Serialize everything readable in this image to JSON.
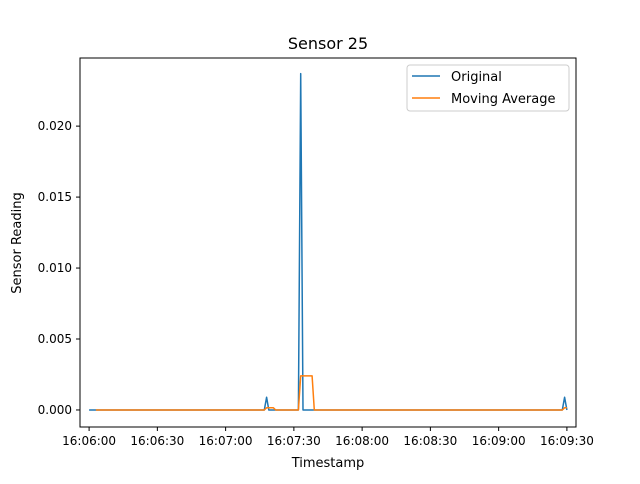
{
  "chart_data": {
    "type": "line",
    "title": "Sensor 25",
    "xlabel": "Timestamp",
    "ylabel": "Sensor Reading",
    "xlim": [
      "16:05:56",
      "16:09:34"
    ],
    "ylim": [
      -0.0012,
      0.0248
    ],
    "x_ticks": [
      "16:06:00",
      "16:06:30",
      "16:07:00",
      "16:07:30",
      "16:08:00",
      "16:08:30",
      "16:09:00",
      "16:09:30"
    ],
    "y_ticks": [
      {
        "value": 0.0,
        "label": "0.000"
      },
      {
        "value": 0.005,
        "label": "0.005"
      },
      {
        "value": 0.01,
        "label": "0.010"
      },
      {
        "value": 0.015,
        "label": "0.015"
      },
      {
        "value": 0.02,
        "label": "0.020"
      }
    ],
    "legend": {
      "position": "top-right"
    },
    "grid": false,
    "series": [
      {
        "name": "Original",
        "color": "#1f77b4",
        "points": [
          [
            "16:06:00",
            0.0
          ],
          [
            "16:07:17",
            0.0
          ],
          [
            "16:07:18",
            0.0009
          ],
          [
            "16:07:19",
            0.0
          ],
          [
            "16:07:32",
            0.0
          ],
          [
            "16:07:33",
            0.0237
          ],
          [
            "16:07:34",
            0.0
          ],
          [
            "16:09:28",
            0.0
          ],
          [
            "16:09:29",
            0.0009
          ],
          [
            "16:09:30",
            0.0
          ]
        ]
      },
      {
        "name": "Moving Average",
        "color": "#ff7f0e",
        "points": [
          [
            "16:06:03",
            0.0
          ],
          [
            "16:07:17",
            0.0
          ],
          [
            "16:07:18",
            0.00015
          ],
          [
            "16:07:21",
            0.00015
          ],
          [
            "16:07:22",
            0.0
          ],
          [
            "16:07:32",
            0.0
          ],
          [
            "16:07:33",
            0.0024
          ],
          [
            "16:07:38",
            0.0024
          ],
          [
            "16:07:39",
            0.0
          ],
          [
            "16:09:28",
            0.0
          ],
          [
            "16:09:29",
            0.00015
          ],
          [
            "16:09:30",
            0.00015
          ]
        ]
      }
    ]
  }
}
